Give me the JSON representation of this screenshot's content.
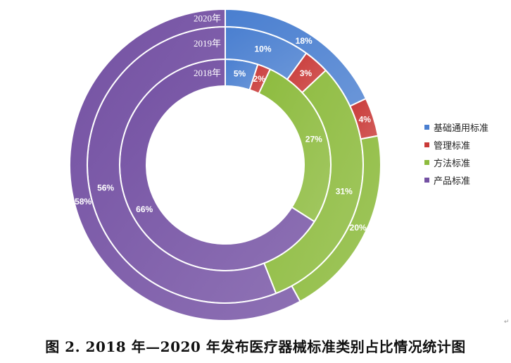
{
  "chart_data": {
    "type": "doughnut",
    "categories": [
      "基础通用标准",
      "管理标准",
      "方法标准",
      "产品标准"
    ],
    "colors": [
      "#4A7FD0",
      "#C93A38",
      "#8DBB3E",
      "#7451A3"
    ],
    "rings": [
      {
        "name": "2018年",
        "values": [
          5,
          2,
          27,
          66
        ],
        "labels": [
          "5%",
          "2%",
          "27%",
          "66%"
        ]
      },
      {
        "name": "2019年",
        "values": [
          10,
          3,
          31,
          56
        ],
        "labels": [
          "10%",
          "3%",
          "31%",
          "56%"
        ]
      },
      {
        "name": "2020年",
        "values": [
          18,
          4,
          20,
          58
        ],
        "labels": [
          "18%",
          "4%",
          "20%",
          "58%"
        ]
      }
    ],
    "legend_position": "right",
    "caption": "图 2. 2018 年—2020 年发布医疗器械标准类别占比情况统计图"
  },
  "legend": {
    "items": [
      {
        "label": "基础通用标准",
        "color": "#4A7FD0"
      },
      {
        "label": "管理标准",
        "color": "#C93A38"
      },
      {
        "label": "方法标准",
        "color": "#8DBB3E"
      },
      {
        "label": "产品标准",
        "color": "#7451A3"
      }
    ]
  },
  "caption": "图 2. 2018 年—2020 年发布医疗器械标准类别占比情况统计图",
  "return_mark": "↵"
}
